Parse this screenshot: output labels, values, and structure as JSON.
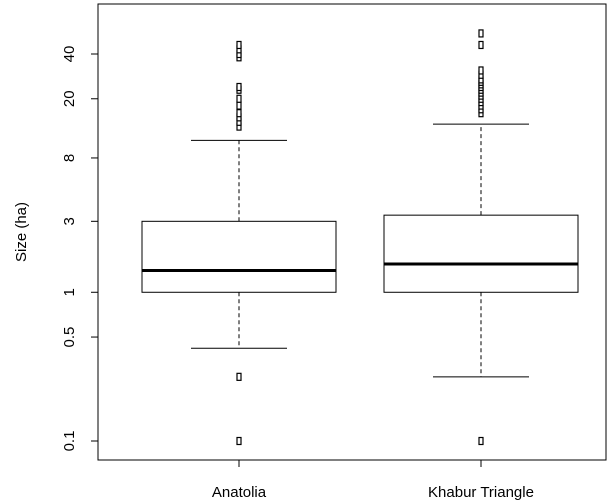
{
  "chart_data": {
    "type": "boxplot",
    "ylabel": "Size (ha)",
    "yscale": "log",
    "ylim": [
      0.085,
      60
    ],
    "yticks": [
      {
        "value": 0.1,
        "label": "0.1"
      },
      {
        "value": 0.5,
        "label": "0.5"
      },
      {
        "value": 1,
        "label": "1"
      },
      {
        "value": 3,
        "label": "3"
      },
      {
        "value": 8,
        "label": "8"
      },
      {
        "value": 20,
        "label": "20"
      },
      {
        "value": 40,
        "label": "40"
      }
    ],
    "grid": false,
    "categories": [
      "Anatolia",
      "Khabur Triangle"
    ],
    "boxes": [
      {
        "category": "Anatolia",
        "whisker_low": 0.42,
        "q1": 1.0,
        "median": 1.4,
        "q3": 3.0,
        "whisker_high": 10.5,
        "outliers": [
          0.1,
          0.27,
          13,
          14,
          15,
          16,
          18,
          20,
          23,
          24,
          38,
          40,
          43,
          46
        ]
      },
      {
        "category": "Khabur Triangle",
        "whisker_low": 0.27,
        "q1": 1.0,
        "median": 1.55,
        "q3": 3.3,
        "whisker_high": 13.5,
        "outliers": [
          0.1,
          16,
          17,
          18,
          19,
          20,
          21,
          22,
          23,
          24,
          25,
          26,
          27,
          29,
          31,
          46,
          55
        ]
      }
    ]
  }
}
